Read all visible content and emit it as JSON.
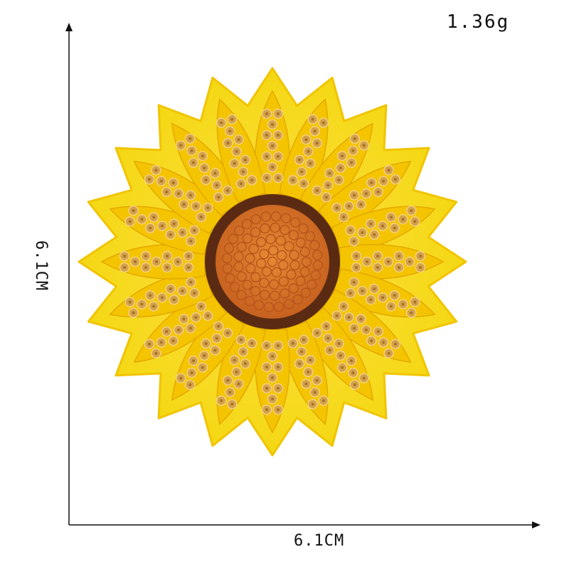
{
  "weight_label": "1.36g",
  "width_label": "6.1CM",
  "height_label": "6.1CM",
  "colors": {
    "felt": "#f6de12",
    "felt_edge": "#f1c400",
    "petal": "#f5c400",
    "sequin": "#d4a24a",
    "sequin_highlight": "#f2d184",
    "center_ring": "#5a2b12",
    "center_fill": "#d8752a",
    "axis": "#111111"
  },
  "icons": {
    "sunflower_patch": "sunflower-sequin-patch-icon"
  }
}
